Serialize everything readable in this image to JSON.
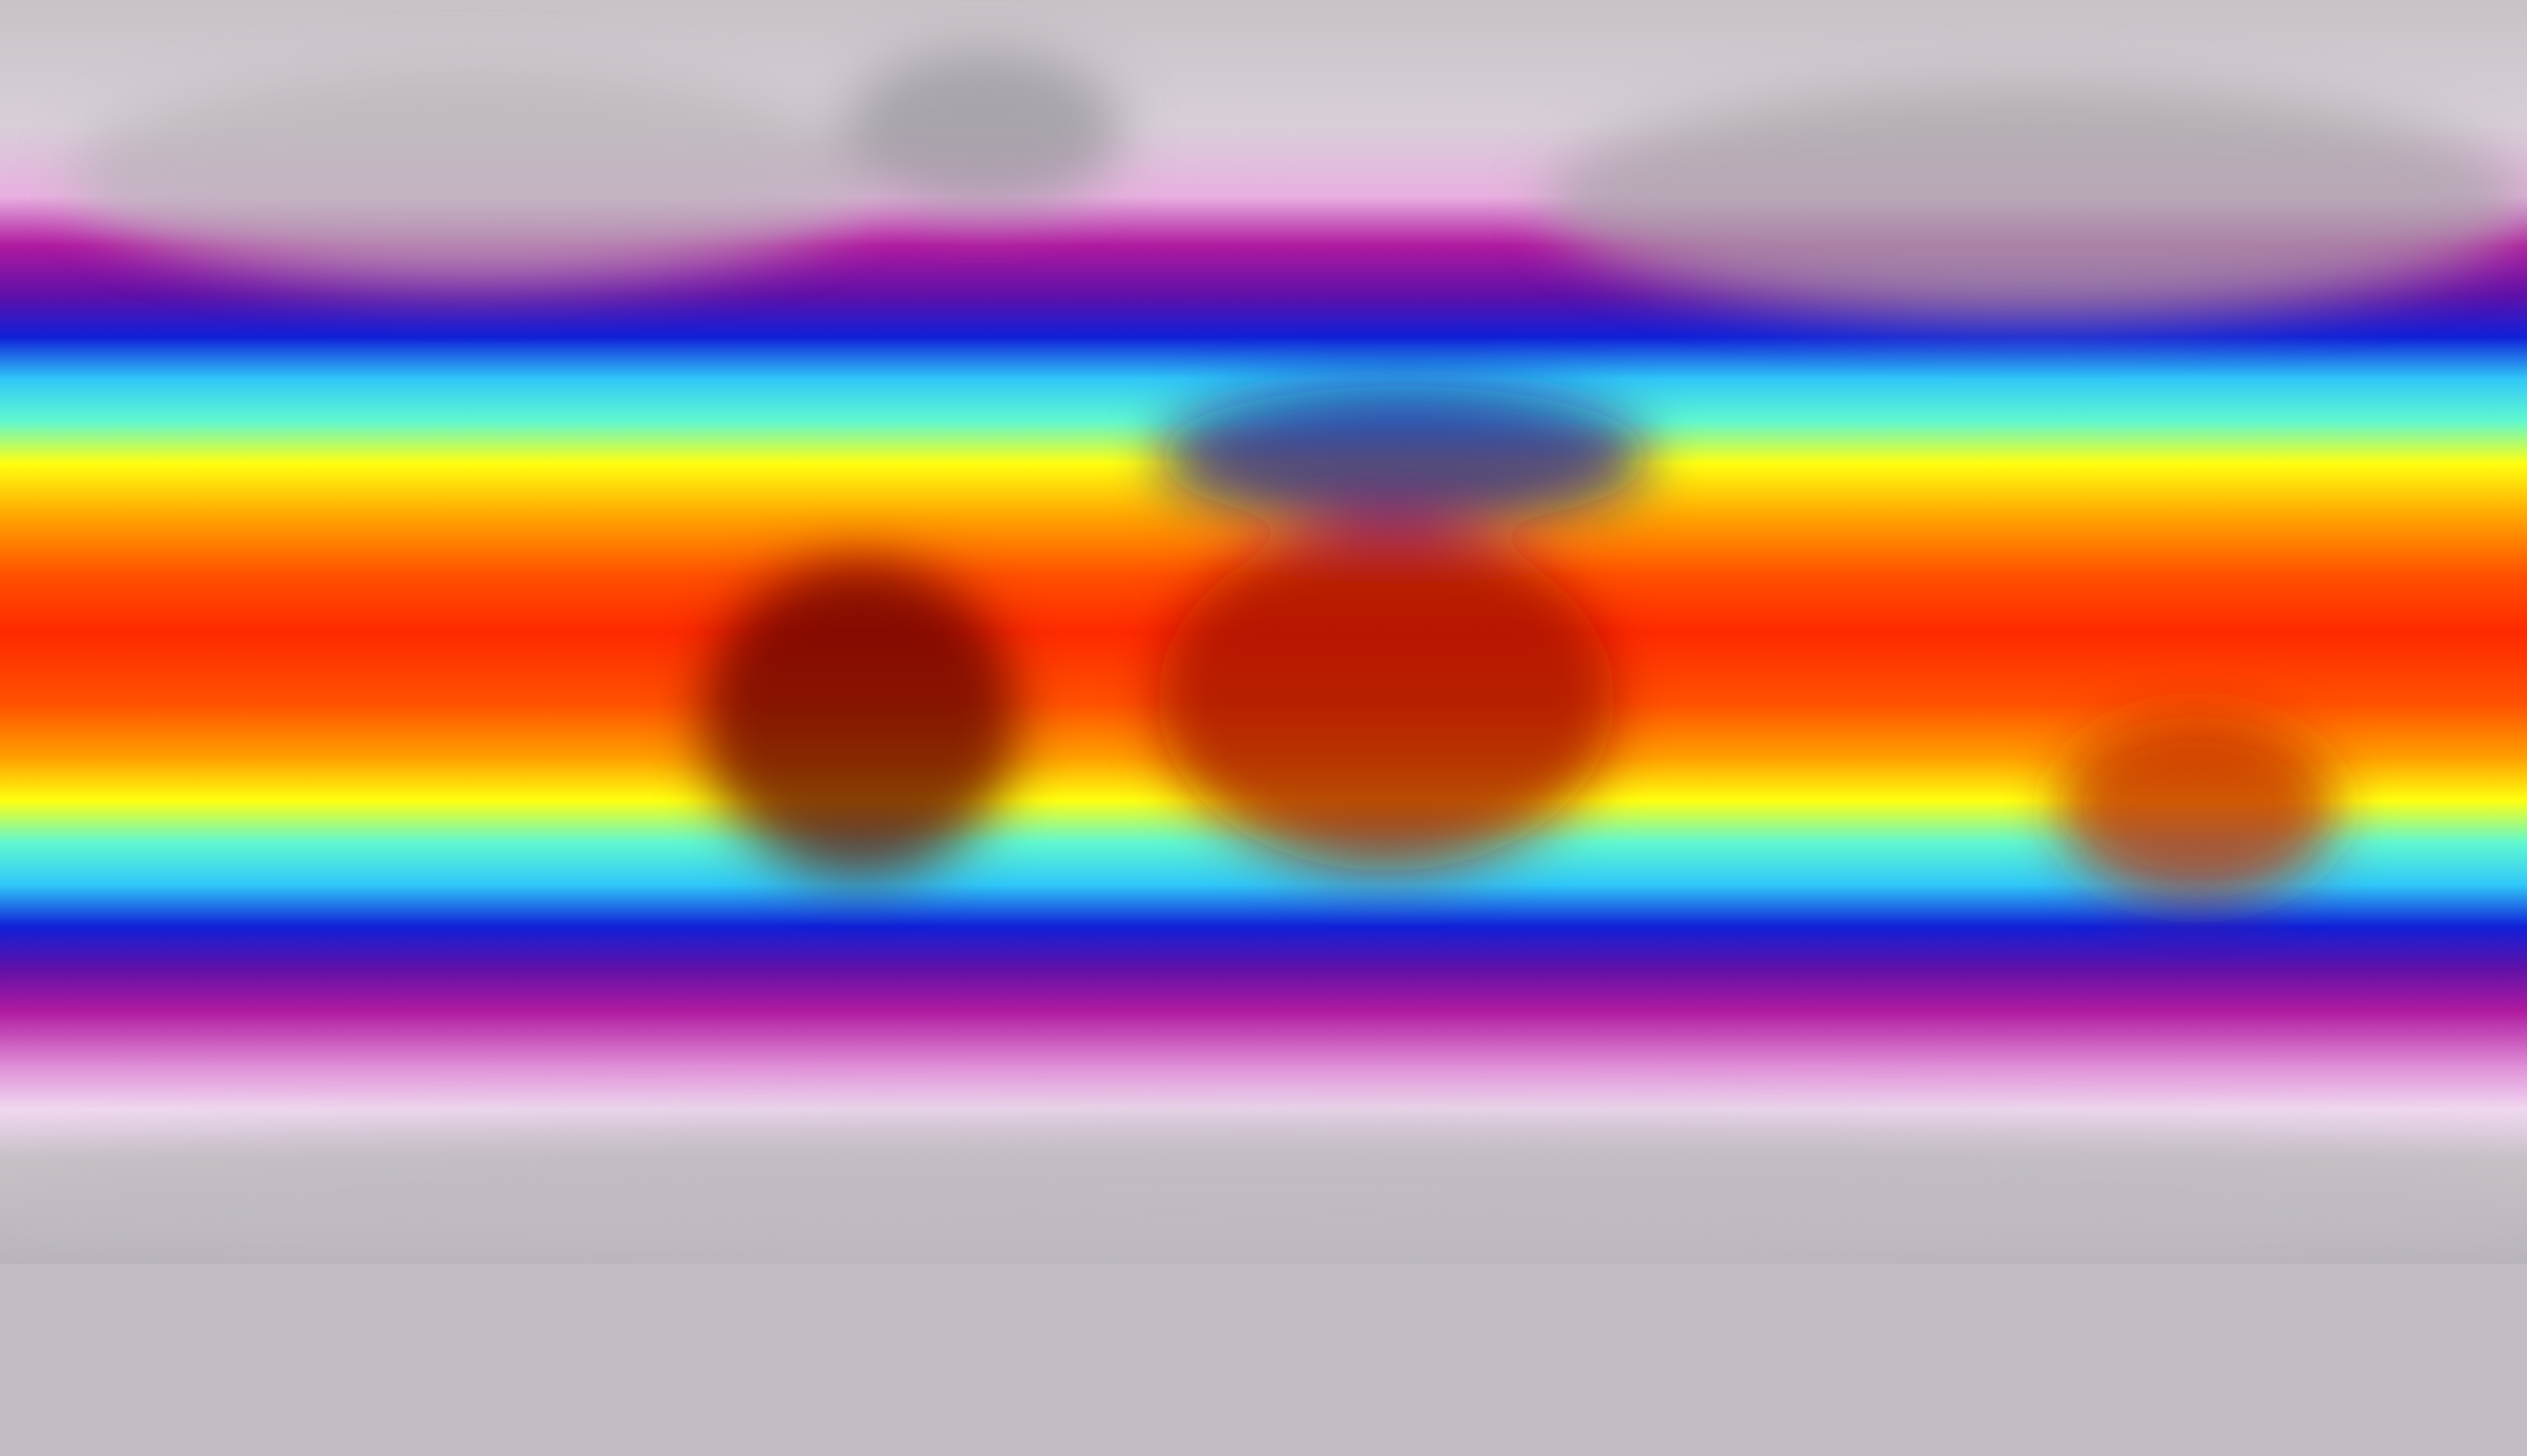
{
  "map": {
    "projection": "equirectangular",
    "colormap_by_latitude": [
      {
        "lat": 90,
        "color": "#c8c2c8"
      },
      {
        "lat": 72,
        "color": "#d8cfd8"
      },
      {
        "lat": 62,
        "color": "#e8b0e0"
      },
      {
        "lat": 55,
        "color": "#b01aa0"
      },
      {
        "lat": 48,
        "color": "#6010a8"
      },
      {
        "lat": 42,
        "color": "#1020d8"
      },
      {
        "lat": 36,
        "color": "#30c8f8"
      },
      {
        "lat": 30,
        "color": "#60f8d0"
      },
      {
        "lat": 24,
        "color": "#ffff10"
      },
      {
        "lat": 16,
        "color": "#ffa000"
      },
      {
        "lat": 8,
        "color": "#ff5000"
      },
      {
        "lat": 0,
        "color": "#ff2a00"
      },
      {
        "lat": -10,
        "color": "#ff5000"
      },
      {
        "lat": -18,
        "color": "#ffa000"
      },
      {
        "lat": -24,
        "color": "#ffff10"
      },
      {
        "lat": -30,
        "color": "#60f8d0"
      },
      {
        "lat": -36,
        "color": "#30c8f8"
      },
      {
        "lat": -42,
        "color": "#1020d8"
      },
      {
        "lat": -48,
        "color": "#6010a8"
      },
      {
        "lat": -54,
        "color": "#b01aa0"
      },
      {
        "lat": -62,
        "color": "#e090d8"
      },
      {
        "lat": -68,
        "color": "#f0d8f0"
      },
      {
        "lat": -75,
        "color": "#c8c2c8"
      },
      {
        "lat": -90,
        "color": "#bab4bc"
      }
    ],
    "regions": [
      {
        "name": "north-america",
        "color": "#b8b4b8",
        "lon": [
          -170,
          -55
        ],
        "lat": [
          50,
          80
        ]
      },
      {
        "name": "eurasia",
        "color": "#a8a4a8",
        "lon": [
          40,
          180
        ],
        "lat": [
          45,
          78
        ]
      },
      {
        "name": "greenland",
        "color": "#9a969c",
        "lon": [
          -60,
          -20
        ],
        "lat": [
          60,
          83
        ]
      },
      {
        "name": "south-america",
        "color": "#600000",
        "lon": [
          -80,
          -35
        ],
        "lat": [
          -35,
          10
        ]
      },
      {
        "name": "africa",
        "color": "#a01000",
        "lon": [
          -15,
          50
        ],
        "lat": [
          -34,
          15
        ]
      },
      {
        "name": "australia",
        "color": "#c02000",
        "lon": [
          113,
          153
        ],
        "lat": [
          -38,
          -12
        ]
      },
      {
        "name": "sahara-arabia",
        "color": "#1810a0",
        "lon": [
          -15,
          55
        ],
        "lat": [
          15,
          35
        ]
      },
      {
        "name": "antarctica",
        "color": "#c0bac2",
        "lon": [
          -180,
          180
        ],
        "lat": [
          -90,
          -70
        ]
      }
    ]
  }
}
